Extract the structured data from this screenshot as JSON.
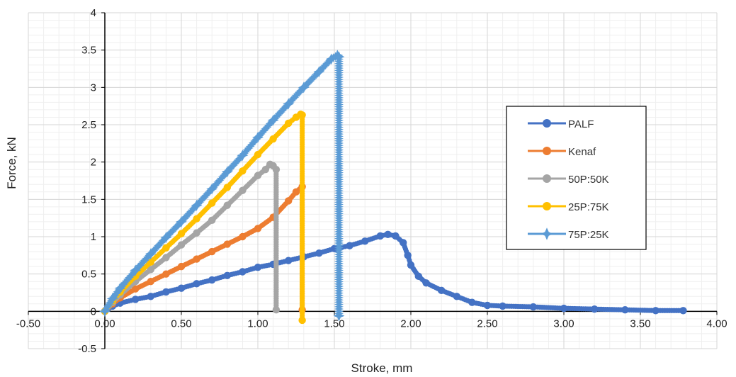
{
  "chart_data": {
    "type": "line",
    "title": "",
    "xlabel": "Stroke, mm",
    "ylabel": "Force, kN",
    "xlim": [
      -0.5,
      4.0
    ],
    "ylim": [
      -0.5,
      4.0
    ],
    "x_ticks": [
      "-0.50",
      "0.00",
      "0.50",
      "1.00",
      "1.50",
      "2.00",
      "2.50",
      "3.00",
      "3.50",
      "4.00"
    ],
    "y_ticks": [
      "-0.5",
      "0",
      "0.5",
      "1",
      "1.5",
      "2",
      "2.5",
      "3",
      "3.5",
      "4"
    ],
    "grid": true,
    "legend_position": "right",
    "series": [
      {
        "name": "PALF",
        "color": "#4472C4",
        "marker": "circle",
        "points": [
          [
            0,
            0
          ],
          [
            0.05,
            0.07
          ],
          [
            0.1,
            0.11
          ],
          [
            0.2,
            0.16
          ],
          [
            0.3,
            0.2
          ],
          [
            0.4,
            0.26
          ],
          [
            0.5,
            0.31
          ],
          [
            0.6,
            0.37
          ],
          [
            0.7,
            0.42
          ],
          [
            0.8,
            0.48
          ],
          [
            0.9,
            0.53
          ],
          [
            1.0,
            0.59
          ],
          [
            1.1,
            0.63
          ],
          [
            1.2,
            0.68
          ],
          [
            1.3,
            0.73
          ],
          [
            1.4,
            0.78
          ],
          [
            1.5,
            0.84
          ],
          [
            1.6,
            0.88
          ],
          [
            1.7,
            0.94
          ],
          [
            1.8,
            1.01
          ],
          [
            1.85,
            1.03
          ],
          [
            1.9,
            1.01
          ],
          [
            1.95,
            0.92
          ],
          [
            1.98,
            0.75
          ],
          [
            2.0,
            0.62
          ],
          [
            2.05,
            0.47
          ],
          [
            2.1,
            0.38
          ],
          [
            2.2,
            0.28
          ],
          [
            2.3,
            0.2
          ],
          [
            2.4,
            0.12
          ],
          [
            2.5,
            0.08
          ],
          [
            2.6,
            0.07
          ],
          [
            2.8,
            0.06
          ],
          [
            3.0,
            0.04
          ],
          [
            3.2,
            0.03
          ],
          [
            3.4,
            0.02
          ],
          [
            3.6,
            0.01
          ],
          [
            3.78,
            0.01
          ]
        ]
      },
      {
        "name": "Kenaf",
        "color": "#ED7D31",
        "marker": "circle",
        "points": [
          [
            0,
            0
          ],
          [
            0.05,
            0.1
          ],
          [
            0.1,
            0.18
          ],
          [
            0.2,
            0.3
          ],
          [
            0.3,
            0.4
          ],
          [
            0.4,
            0.5
          ],
          [
            0.5,
            0.6
          ],
          [
            0.6,
            0.7
          ],
          [
            0.7,
            0.8
          ],
          [
            0.8,
            0.9
          ],
          [
            0.9,
            1.0
          ],
          [
            1.0,
            1.11
          ],
          [
            1.1,
            1.26
          ],
          [
            1.2,
            1.48
          ],
          [
            1.25,
            1.6
          ],
          [
            1.29,
            1.67
          ],
          [
            1.29,
            0.02
          ]
        ]
      },
      {
        "name": "50P:50K",
        "color": "#A5A5A5",
        "marker": "circle",
        "points": [
          [
            0,
            0
          ],
          [
            0.05,
            0.12
          ],
          [
            0.1,
            0.22
          ],
          [
            0.2,
            0.4
          ],
          [
            0.3,
            0.56
          ],
          [
            0.4,
            0.72
          ],
          [
            0.5,
            0.89
          ],
          [
            0.6,
            1.05
          ],
          [
            0.7,
            1.22
          ],
          [
            0.8,
            1.42
          ],
          [
            0.9,
            1.62
          ],
          [
            1.0,
            1.82
          ],
          [
            1.05,
            1.9
          ],
          [
            1.08,
            1.97
          ],
          [
            1.1,
            1.95
          ],
          [
            1.12,
            1.9
          ],
          [
            1.12,
            0.02
          ]
        ]
      },
      {
        "name": "25P:75K",
        "color": "#FFC000",
        "marker": "circle",
        "points": [
          [
            0,
            0
          ],
          [
            0.05,
            0.14
          ],
          [
            0.1,
            0.26
          ],
          [
            0.2,
            0.47
          ],
          [
            0.3,
            0.66
          ],
          [
            0.4,
            0.85
          ],
          [
            0.5,
            1.04
          ],
          [
            0.6,
            1.24
          ],
          [
            0.7,
            1.45
          ],
          [
            0.8,
            1.66
          ],
          [
            0.9,
            1.88
          ],
          [
            1.0,
            2.1
          ],
          [
            1.1,
            2.31
          ],
          [
            1.2,
            2.52
          ],
          [
            1.25,
            2.6
          ],
          [
            1.28,
            2.64
          ],
          [
            1.29,
            2.63
          ],
          [
            1.29,
            -0.12
          ]
        ]
      },
      {
        "name": "75P:25K",
        "color": "#5B9BD5",
        "marker": "star",
        "points": [
          [
            0,
            0
          ],
          [
            0.05,
            0.17
          ],
          [
            0.1,
            0.31
          ],
          [
            0.2,
            0.55
          ],
          [
            0.3,
            0.77
          ],
          [
            0.4,
            0.99
          ],
          [
            0.5,
            1.2
          ],
          [
            0.6,
            1.42
          ],
          [
            0.7,
            1.64
          ],
          [
            0.8,
            1.87
          ],
          [
            0.9,
            2.09
          ],
          [
            1.0,
            2.33
          ],
          [
            1.1,
            2.56
          ],
          [
            1.2,
            2.78
          ],
          [
            1.3,
            3.0
          ],
          [
            1.4,
            3.21
          ],
          [
            1.48,
            3.38
          ],
          [
            1.52,
            3.43
          ],
          [
            1.53,
            3.41
          ],
          [
            1.53,
            -0.06
          ]
        ]
      }
    ]
  }
}
